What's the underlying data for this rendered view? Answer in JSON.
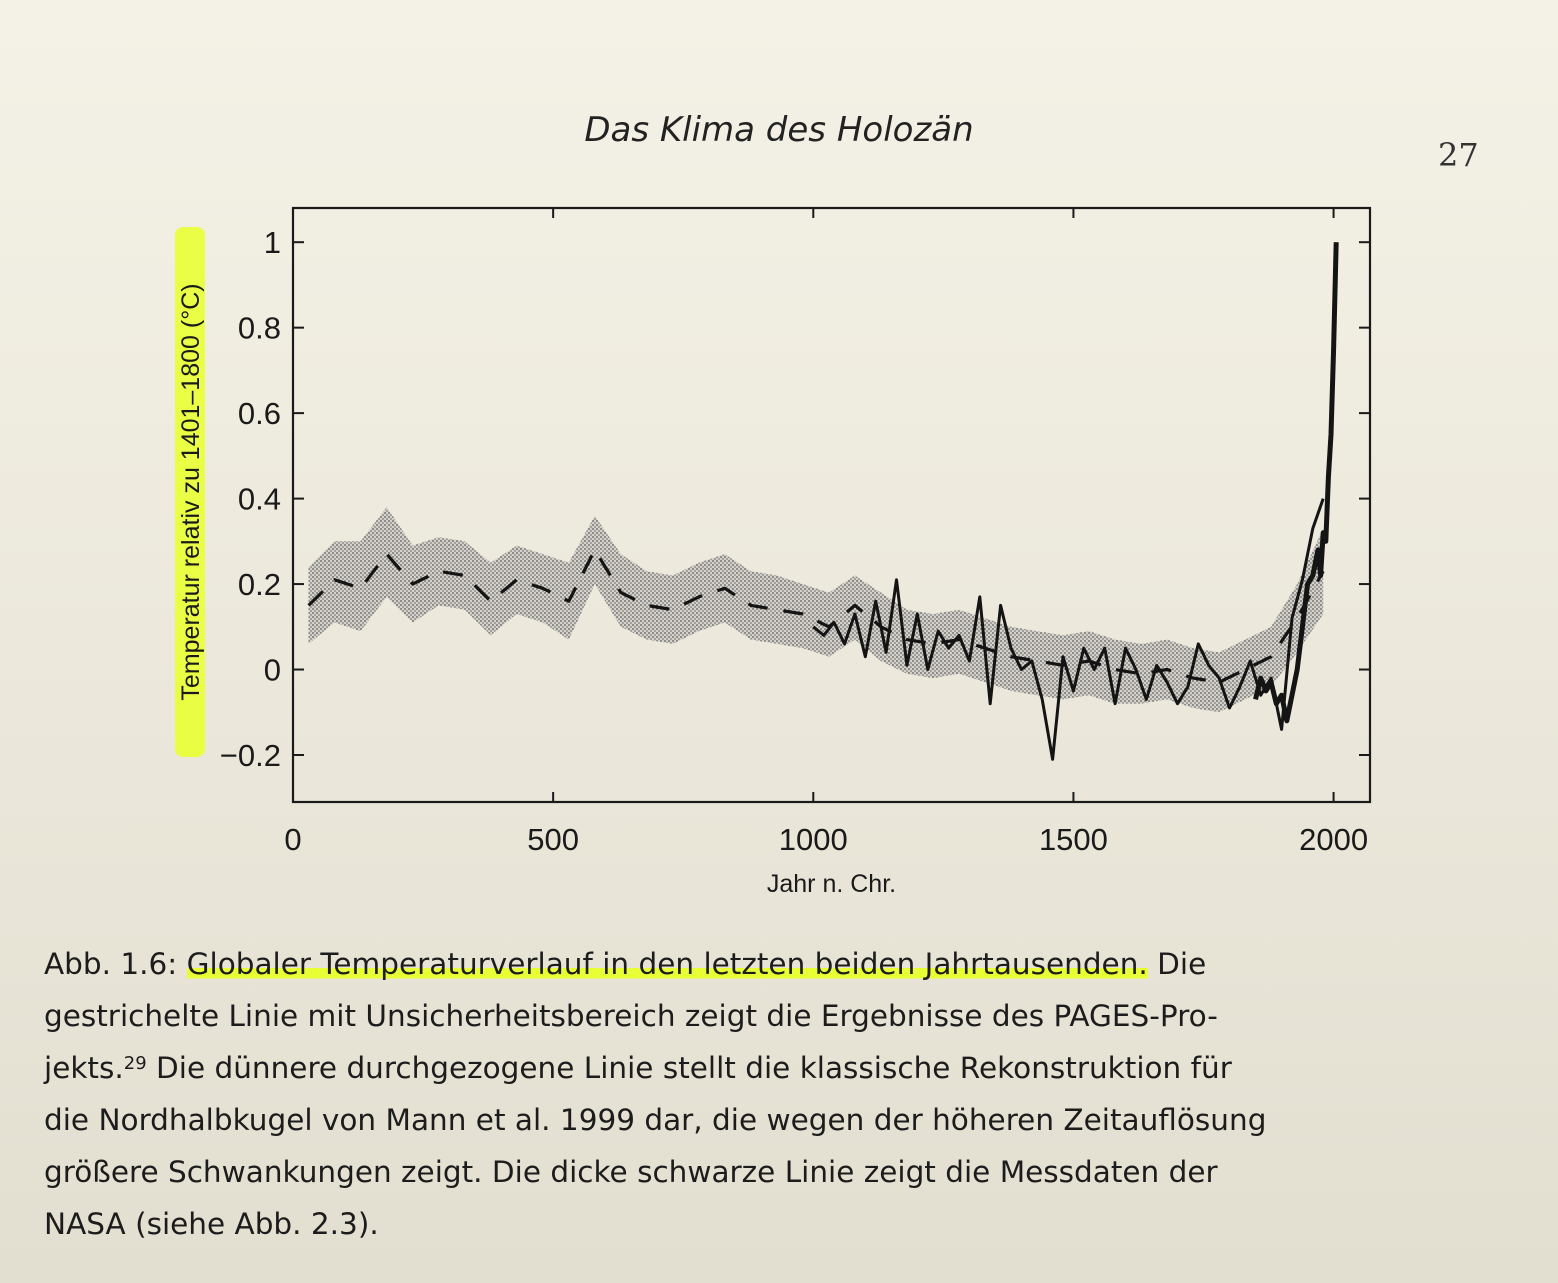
{
  "page": {
    "running_head": "Das Klima des Holozän",
    "page_number": "27"
  },
  "colors": {
    "highlight": "#e8ff36",
    "line": "#141414",
    "band": "#9a9a9a"
  },
  "chart_data": {
    "type": "line",
    "xlabel": "Jahr n. Chr.",
    "ylabel": "Temperatur relativ zu 1401–1800 (°C)",
    "xlim": [
      0,
      2070
    ],
    "ylim": [
      -0.31,
      1.08
    ],
    "x_ticks": [
      0,
      500,
      1000,
      1500,
      2000
    ],
    "y_ticks": [
      1,
      0.8,
      0.6,
      0.4,
      0.2,
      0,
      -0.2
    ],
    "y_tick_labels": [
      "1",
      "0.8",
      "0.6",
      "0.4",
      "0.2",
      "0",
      "−0.2"
    ],
    "ylabel_highlighted": true,
    "grid": false,
    "legend": "none",
    "series": [
      {
        "style": "dashed-with-uncertainty-band",
        "x": [
          30,
          80,
          130,
          180,
          230,
          280,
          330,
          380,
          430,
          480,
          530,
          580,
          630,
          680,
          730,
          780,
          830,
          880,
          930,
          980,
          1030,
          1080,
          1130,
          1180,
          1230,
          1280,
          1330,
          1380,
          1430,
          1480,
          1530,
          1580,
          1630,
          1680,
          1730,
          1780,
          1830,
          1880,
          1930,
          1980
        ],
        "y": [
          0.15,
          0.21,
          0.19,
          0.27,
          0.2,
          0.23,
          0.22,
          0.16,
          0.21,
          0.19,
          0.16,
          0.28,
          0.18,
          0.15,
          0.14,
          0.17,
          0.19,
          0.15,
          0.14,
          0.13,
          0.1,
          0.15,
          0.1,
          0.07,
          0.06,
          0.07,
          0.05,
          0.03,
          0.02,
          0.01,
          0.02,
          0.0,
          -0.01,
          0.0,
          -0.02,
          -0.03,
          0.0,
          0.03,
          0.12,
          0.23
        ],
        "upper": [
          0.24,
          0.3,
          0.3,
          0.38,
          0.29,
          0.31,
          0.3,
          0.25,
          0.29,
          0.27,
          0.25,
          0.36,
          0.27,
          0.23,
          0.22,
          0.25,
          0.27,
          0.23,
          0.22,
          0.2,
          0.18,
          0.22,
          0.18,
          0.14,
          0.13,
          0.14,
          0.12,
          0.1,
          0.09,
          0.08,
          0.09,
          0.07,
          0.06,
          0.07,
          0.05,
          0.04,
          0.07,
          0.1,
          0.2,
          0.33
        ],
        "lower": [
          0.06,
          0.11,
          0.09,
          0.17,
          0.11,
          0.15,
          0.14,
          0.08,
          0.13,
          0.11,
          0.07,
          0.2,
          0.1,
          0.07,
          0.06,
          0.09,
          0.11,
          0.07,
          0.06,
          0.05,
          0.03,
          0.07,
          0.02,
          -0.01,
          -0.02,
          -0.01,
          -0.03,
          -0.05,
          -0.06,
          -0.07,
          -0.06,
          -0.08,
          -0.08,
          -0.07,
          -0.09,
          -0.1,
          -0.07,
          -0.04,
          0.04,
          0.13
        ]
      },
      {
        "style": "thin-solid",
        "x": [
          1000,
          1020,
          1040,
          1060,
          1080,
          1100,
          1120,
          1140,
          1160,
          1180,
          1200,
          1220,
          1240,
          1260,
          1280,
          1300,
          1320,
          1340,
          1360,
          1380,
          1400,
          1420,
          1440,
          1460,
          1480,
          1500,
          1520,
          1540,
          1560,
          1580,
          1600,
          1620,
          1640,
          1660,
          1680,
          1700,
          1720,
          1740,
          1760,
          1780,
          1800,
          1820,
          1840,
          1860,
          1880,
          1900,
          1920,
          1940,
          1960,
          1980
        ],
        "y": [
          0.1,
          0.08,
          0.11,
          0.06,
          0.13,
          0.03,
          0.16,
          0.04,
          0.21,
          0.01,
          0.13,
          0.0,
          0.09,
          0.05,
          0.08,
          0.02,
          0.17,
          -0.08,
          0.15,
          0.05,
          0.0,
          0.02,
          -0.07,
          -0.21,
          0.03,
          -0.05,
          0.05,
          0.0,
          0.05,
          -0.08,
          0.05,
          0.0,
          -0.07,
          0.01,
          -0.03,
          -0.08,
          -0.04,
          0.06,
          0.01,
          -0.02,
          -0.09,
          -0.04,
          0.02,
          -0.06,
          -0.02,
          -0.14,
          0.12,
          0.21,
          0.33,
          0.4
        ]
      },
      {
        "style": "thick-solid",
        "x": [
          1850,
          1860,
          1870,
          1880,
          1890,
          1900,
          1910,
          1920,
          1930,
          1940,
          1950,
          1960,
          1970,
          1975,
          1980,
          1985,
          1990,
          1995,
          2000,
          2005
        ],
        "y": [
          -0.07,
          -0.02,
          -0.05,
          -0.03,
          -0.08,
          -0.06,
          -0.12,
          -0.06,
          0.0,
          0.1,
          0.2,
          0.22,
          0.28,
          0.22,
          0.32,
          0.3,
          0.45,
          0.55,
          0.75,
          1.0
        ]
      }
    ]
  },
  "caption": {
    "label": "Abb. 1.6:",
    "lines": [
      "Globaler Temperaturverlauf in den letzten beiden Jahrtausenden.",
      "Die",
      "gestrichelte Linie mit Unsicherheitsbereich zeigt die Ergebnisse des PAGES-Pro-",
      "jekts.",
      "29",
      "Die dünnere durchgezogene Linie stellt die klassische Rekonstruktion für",
      "die Nordhalbkugel von Mann et al. 1999 dar, die wegen der höheren Zeitauflösung",
      "größere Schwankungen zeigt. Die dicke schwarze Linie zeigt die Messdaten der",
      "NASA (siehe Abb. 2.3)."
    ]
  }
}
